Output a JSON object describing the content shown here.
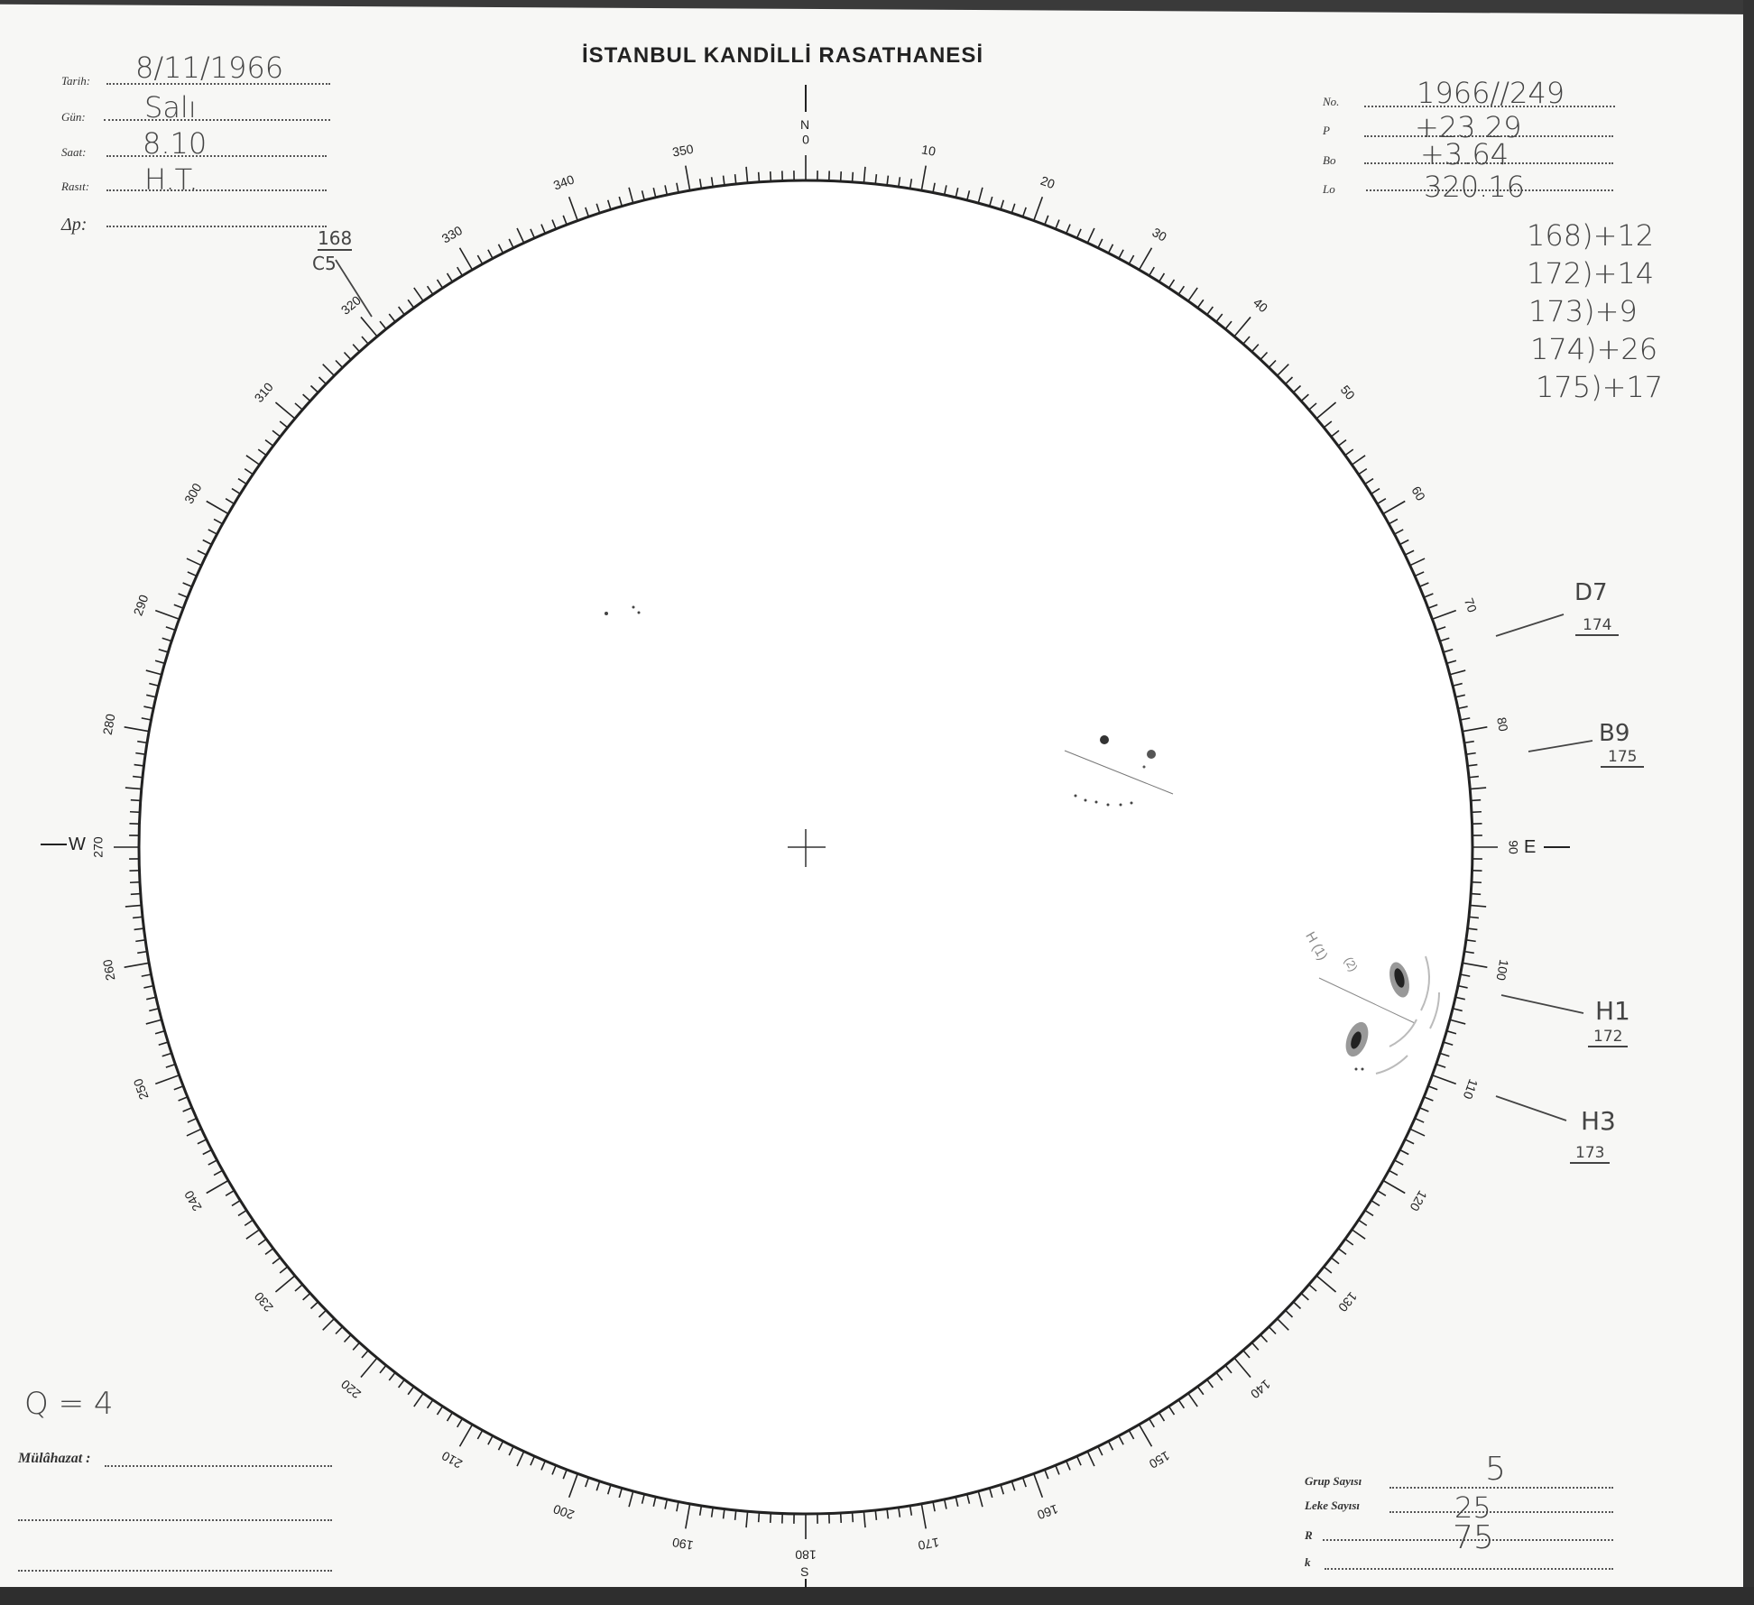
{
  "header": {
    "title": "İSTANBUL KANDİLLİ RASATHANESİ"
  },
  "left_fields": [
    {
      "label": "Tarih:",
      "value": "8/11/1966"
    },
    {
      "label": "Gün:",
      "value": "Salı"
    },
    {
      "label": "Saat:",
      "value": "8.10"
    },
    {
      "label": "Rasıt:",
      "value": "H.T."
    },
    {
      "label": "Δp:",
      "value": ""
    }
  ],
  "right_fields": [
    {
      "label": "No.",
      "value": "1966//249"
    },
    {
      "label": "P",
      "value": "+23.29"
    },
    {
      "label": "Bo",
      "value": "+3.64"
    },
    {
      "label": "Lo",
      "value": "320.16"
    }
  ],
  "group_notes": [
    "168)+12",
    "172)+14",
    "173)+9",
    "174)+26",
    "175)+17"
  ],
  "disk": {
    "north": "N",
    "south": "S",
    "east": "E",
    "west": "W",
    "scale_labels": [
      "0",
      "10",
      "20",
      "30",
      "40",
      "50",
      "60",
      "70",
      "80",
      "90",
      "100",
      "110",
      "120",
      "130",
      "140",
      "150",
      "160",
      "170",
      "180",
      "190",
      "200",
      "210",
      "220",
      "230",
      "240",
      "250",
      "260",
      "270",
      "280",
      "290",
      "300",
      "310",
      "320",
      "330",
      "340",
      "350"
    ]
  },
  "group_labels": [
    {
      "class": "C5",
      "number": "168"
    },
    {
      "class": "D7",
      "number": "174"
    },
    {
      "class": "B9",
      "number": "175"
    },
    {
      "class": "H1",
      "number": "172"
    },
    {
      "class": "H3",
      "number": "173"
    }
  ],
  "spot_annotations": [
    "H (1)",
    "(2)"
  ],
  "footer_left": {
    "q_note": "Q = 4",
    "remarks_label": "Mülâhazat :"
  },
  "footer_right": [
    {
      "label": "Grup Sayısı",
      "value": "5"
    },
    {
      "label": "Leke Sayısı",
      "value": "25"
    },
    {
      "label": "R",
      "value": "75"
    },
    {
      "label": "k",
      "value": ""
    }
  ],
  "colors": {
    "paper": "#f7f7f5",
    "ink": "#222222",
    "scan_border": "#333333"
  }
}
